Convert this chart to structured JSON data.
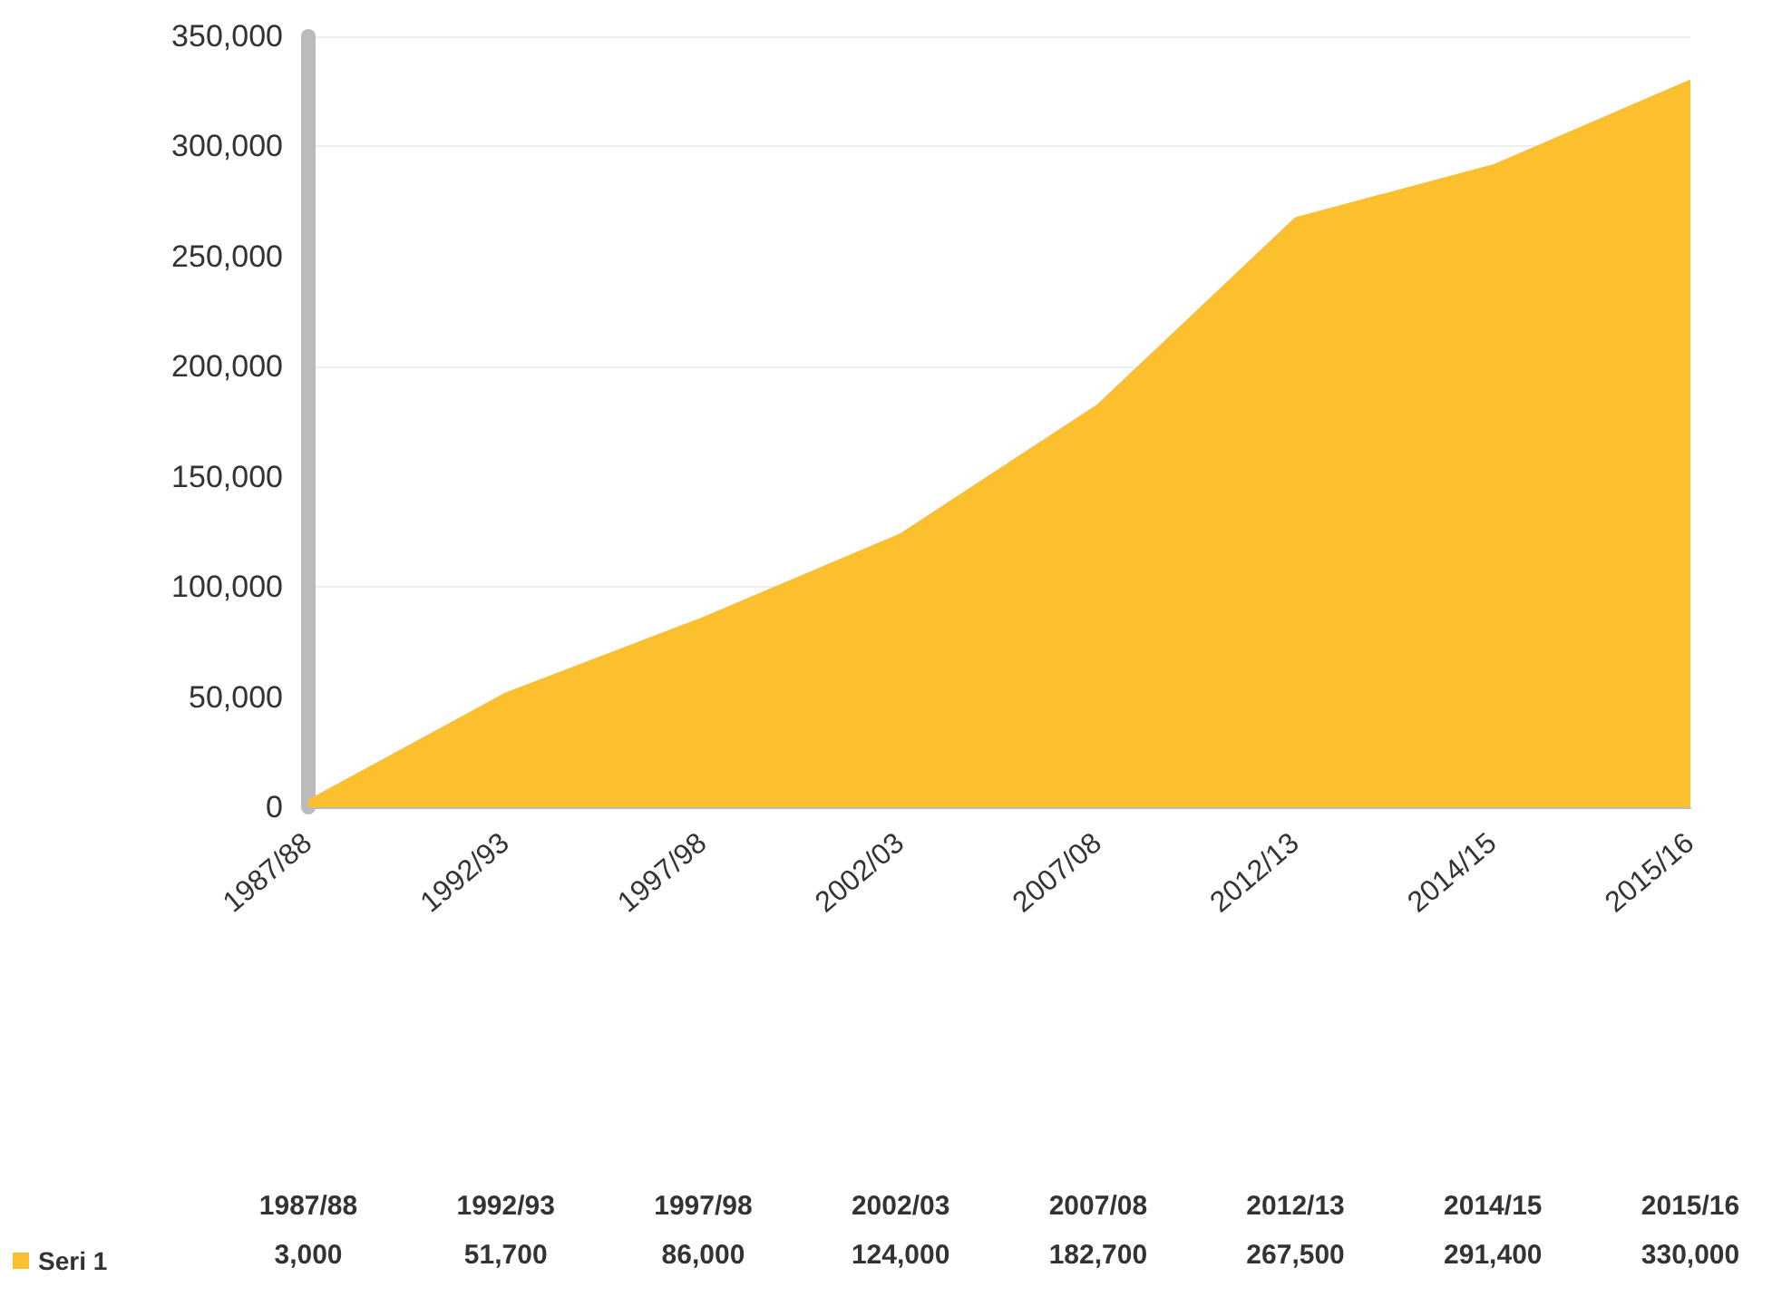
{
  "chart_data": {
    "type": "area",
    "categories": [
      "1987/88",
      "1992/93",
      "1997/98",
      "2002/03",
      "2007/08",
      "2012/13",
      "2014/15",
      "2015/16"
    ],
    "series": [
      {
        "name": "Seri 1",
        "color": "#fcbf2e",
        "values": [
          3000,
          51700,
          86000,
          124000,
          182700,
          267500,
          291400,
          330000
        ],
        "value_labels": [
          "3,000",
          "51,700",
          "86,000",
          "124,000",
          "182,700",
          "267,500",
          "291,400",
          "330,000"
        ]
      }
    ],
    "ylim": [
      0,
      350000
    ],
    "yticks": [
      {
        "value": 0,
        "label": "0"
      },
      {
        "value": 50000,
        "label": "50,000"
      },
      {
        "value": 100000,
        "label": "100,000"
      },
      {
        "value": 150000,
        "label": "150,000"
      },
      {
        "value": 200000,
        "label": "200,000"
      },
      {
        "value": 250000,
        "label": "250,000"
      },
      {
        "value": 300000,
        "label": "300,000"
      },
      {
        "value": 350000,
        "label": "350,000"
      }
    ],
    "grid": "y",
    "legend": "bottom left"
  }
}
